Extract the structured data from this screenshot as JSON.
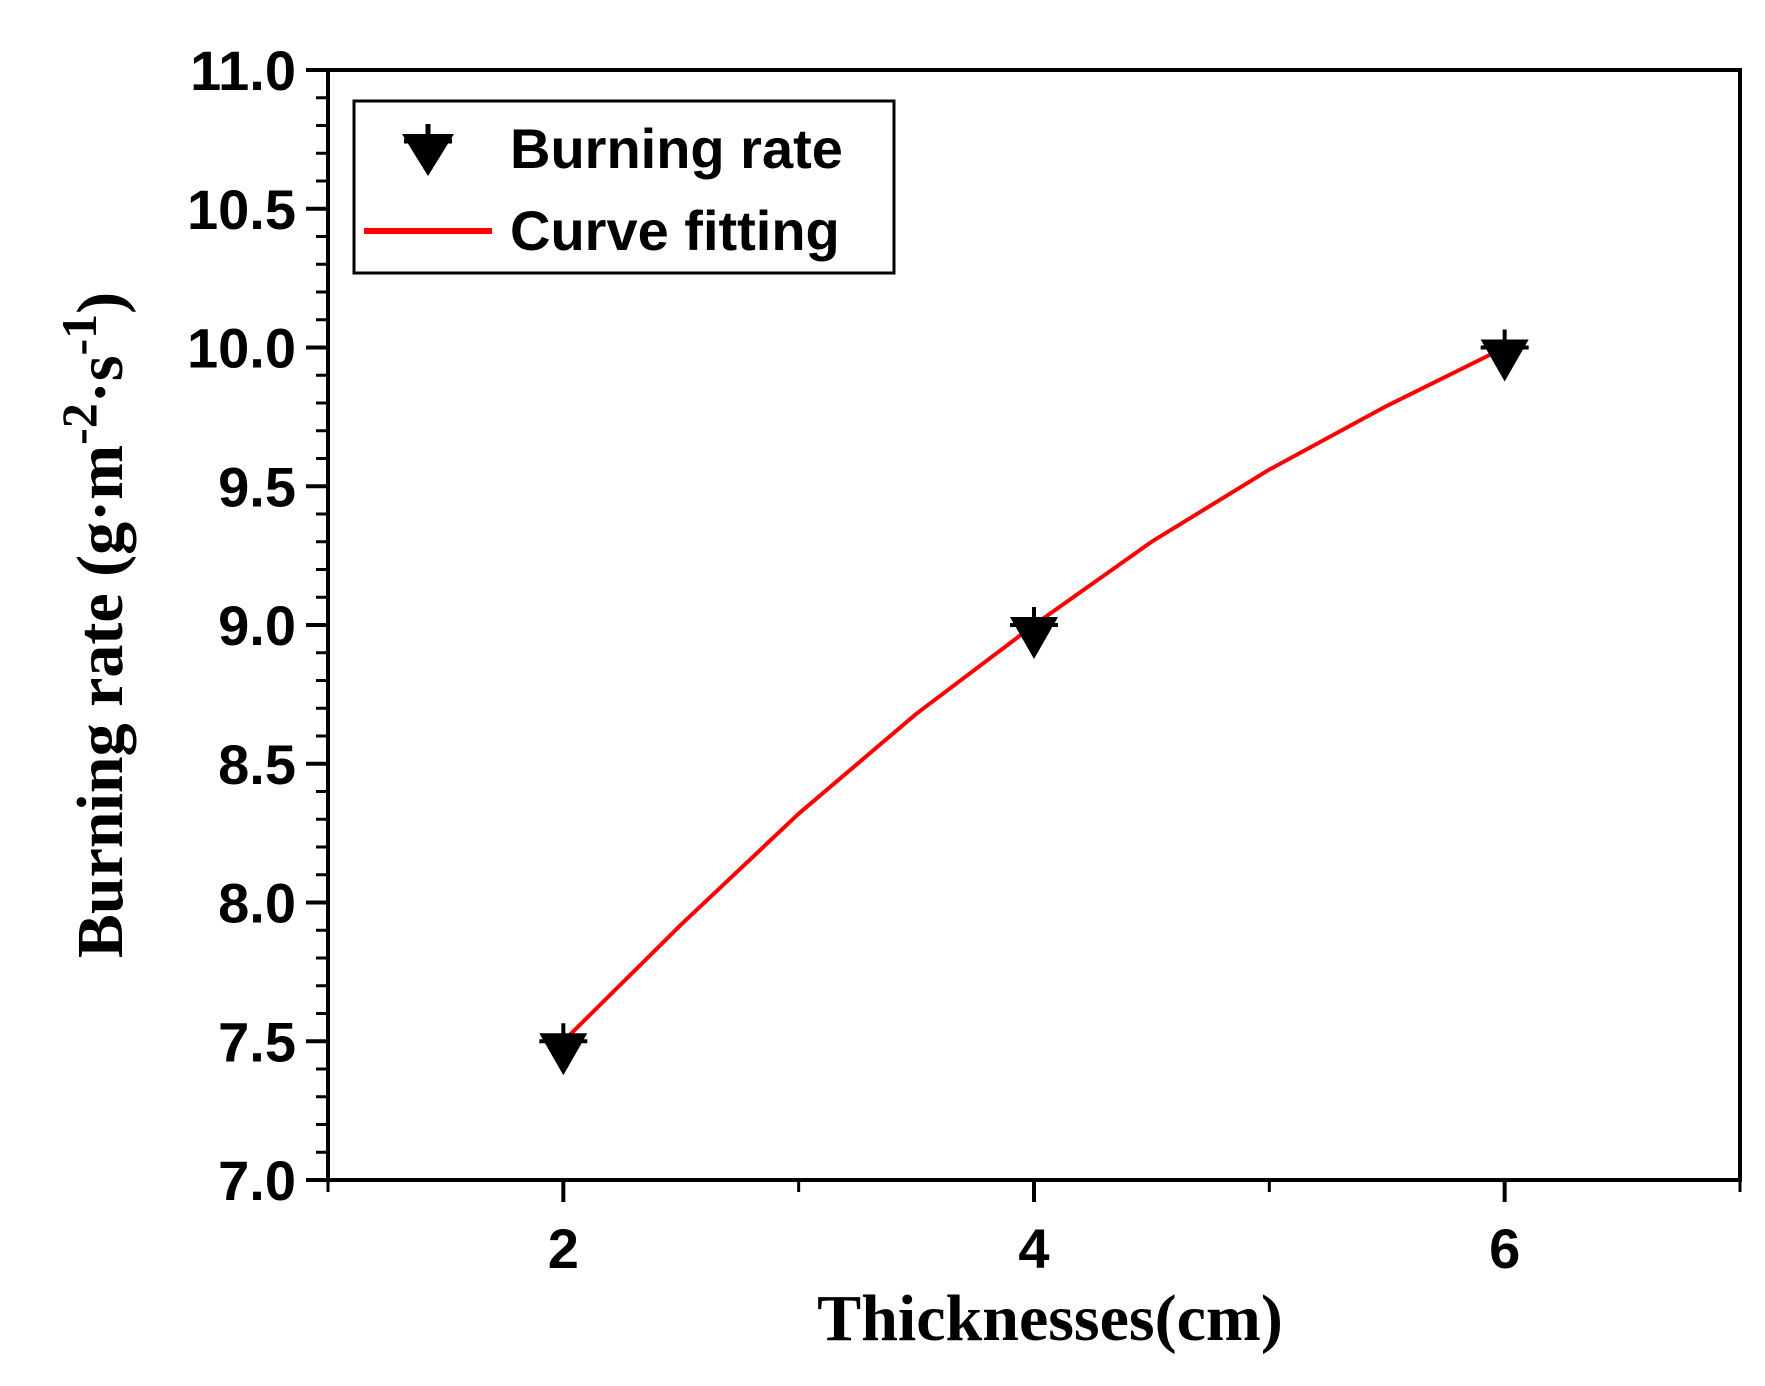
{
  "chart_data": {
    "type": "scatter",
    "title": "",
    "xlabel": "Thicknesses(cm)",
    "ylabel": {
      "main": "Burning rate (g·m",
      "sup1": "-2",
      "mid": "·s",
      "sup2": "-1",
      "end": ")"
    },
    "xlim": [
      1,
      7
    ],
    "ylim": [
      7.0,
      11.0
    ],
    "x_ticks": [
      2,
      4,
      6
    ],
    "x_tick_labels": [
      "2",
      "4",
      "6"
    ],
    "y_ticks": [
      7.0,
      7.5,
      8.0,
      8.5,
      9.0,
      9.5,
      10.0,
      10.5,
      11.0
    ],
    "y_tick_labels": [
      "7.0",
      "7.5",
      "8.0",
      "8.5",
      "9.0",
      "9.5",
      "10.0",
      "10.5",
      "11.0"
    ],
    "series": [
      {
        "name": "Burning rate",
        "kind": "scatter",
        "marker": "down-triangle",
        "color": "#000000",
        "x": [
          2,
          4,
          6
        ],
        "y": [
          7.5,
          9.0,
          10.0
        ]
      },
      {
        "name": "Curve fitting",
        "kind": "line",
        "color": "#ff0000",
        "x": [
          2,
          2.5,
          3,
          3.5,
          4,
          4.5,
          5,
          5.5,
          6
        ],
        "y": [
          7.5,
          7.92,
          8.32,
          8.68,
          9.0,
          9.3,
          9.56,
          9.79,
          10.0
        ]
      }
    ],
    "legend": {
      "position": "top-left",
      "entries": [
        "Burning rate",
        "Curve fitting"
      ]
    },
    "grid": false
  }
}
